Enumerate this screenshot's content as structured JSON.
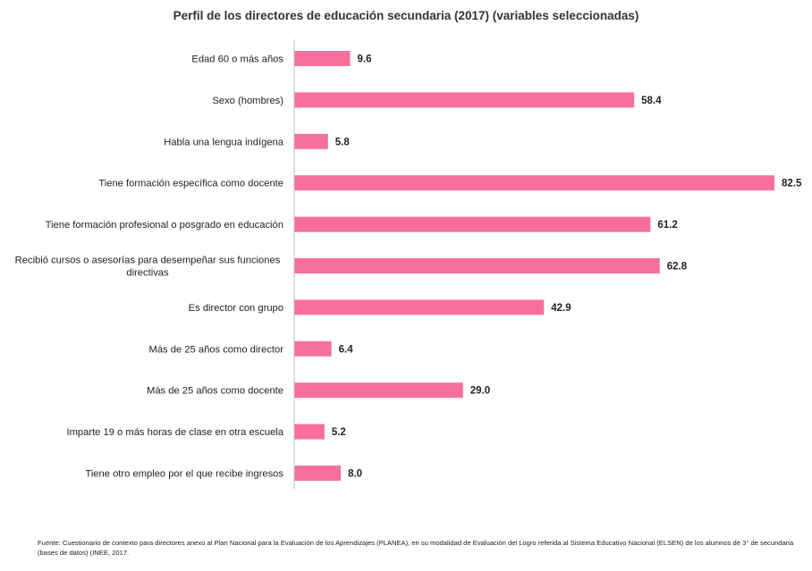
{
  "chart_data": {
    "type": "bar",
    "orientation": "horizontal",
    "title": "Perfil de los directores de educación secundaria (2017) (variables seleccionadas)",
    "categories": [
      "Edad 60 o más años",
      "Sexo (hombres)",
      "Habla una lengua indígena",
      "Tiene formación específica como docente",
      "Tiene formación profesional o posgrado en educación",
      "Recibió cursos o asesorías para desempeñar sus funciones directivas",
      "Es director con grupo",
      "Más de 25 años como director",
      "Más de 25 años como docente",
      "Imparte 19 o más horas de clase en otra escuela",
      "Tiene otro empleo por el que recibe ingresos"
    ],
    "category_lines": [
      [
        "Edad 60 o más años"
      ],
      [
        "Sexo (hombres)"
      ],
      [
        "Habla una lengua indígena"
      ],
      [
        "Tiene formación específica como docente"
      ],
      [
        "Tiene formación profesional o posgrado en educación"
      ],
      [
        "Recibió cursos o asesorías para desempeñar sus funciones",
        "directivas"
      ],
      [
        "Es director con grupo"
      ],
      [
        "Más de 25 años como director"
      ],
      [
        "Más de 25 años como docente"
      ],
      [
        "Imparte 19 o más horas de clase en otra escuela"
      ],
      [
        "Tiene otro empleo por el que recibe ingresos"
      ]
    ],
    "values": [
      9.6,
      58.4,
      5.8,
      82.5,
      61.2,
      62.8,
      42.9,
      6.4,
      29.0,
      5.2,
      8.0
    ],
    "value_labels": [
      "9.6",
      "58.4",
      "5.8",
      "82.5",
      "61.2",
      "62.8",
      "42.9",
      "6.4",
      "29.0",
      "5.2",
      "8.0"
    ],
    "xlim": [
      0,
      82.5
    ],
    "grid": false,
    "legend": "none",
    "bar_color": "#f7709b",
    "axis_color": "#bfbfbf"
  },
  "footer": {
    "source_text": "Fuente: Cuestionario de contexto para directores anexo al Plan Nacional para la Evaluación de los Aprendizajes (PLANEA), en su modalidad de Evaluación del Logro referida al Sistema Educativo Nacional (ELSEN) de los alumnos de 3° de secundaria (bases de datos) (INEE, 2017."
  }
}
